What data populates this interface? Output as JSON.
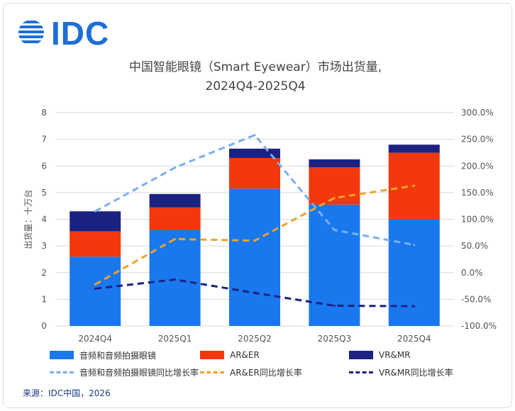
{
  "logo": {
    "text": "IDC"
  },
  "title_line1": "中国智能眼镜（Smart Eyewear）市场出货量,",
  "title_line2": "2024Q4-2025Q4",
  "source": "来源：IDC中国，2026",
  "colors": {
    "audio": "#1978ee",
    "arer": "#f2380c",
    "vrmr": "#1d2180",
    "audio_yoy": "#7aaef0",
    "arer_yoy": "#f0a12c",
    "vrmr_yoy": "#1d2180",
    "grid": "#d9d9d9",
    "axis_text": "#555555"
  },
  "chart_data": {
    "type": "bar",
    "stacked": true,
    "title": "中国智能眼镜（Smart Eyewear）市场出货量, 2024Q4-2025Q4",
    "categories": [
      "2024Q4",
      "2025Q1",
      "2025Q2",
      "2025Q3",
      "2025Q4"
    ],
    "ylabel": "出货量：十万台",
    "ylim": [
      0,
      8
    ],
    "y_ticks": [
      "0",
      "1",
      "2",
      "3",
      "4",
      "5",
      "6",
      "7",
      "8"
    ],
    "y2lim": [
      -100,
      300
    ],
    "y2_ticks": [
      "-100.0%",
      "-50.0%",
      "0.0%",
      "50.0%",
      "100.0%",
      "150.0%",
      "200.0%",
      "250.0%",
      "300.0%"
    ],
    "grid": true,
    "legend_position": "bottom",
    "series": [
      {
        "name": "音频和音频拍摄眼镜",
        "kind": "bar",
        "axis": "left",
        "values": [
          2.6,
          3.6,
          5.15,
          4.55,
          4.0
        ]
      },
      {
        "name": "AR&ER",
        "kind": "bar",
        "axis": "left",
        "values": [
          0.95,
          0.85,
          1.15,
          1.4,
          2.5
        ]
      },
      {
        "name": "VR&MR",
        "kind": "bar",
        "axis": "left",
        "values": [
          0.75,
          0.5,
          0.35,
          0.3,
          0.3
        ]
      },
      {
        "name": "音频和音频拍摄眼镜同比增长率",
        "kind": "line",
        "axis": "right",
        "values": [
          115,
          197,
          258,
          80,
          52
        ]
      },
      {
        "name": "AR&ER同比增长率",
        "kind": "line",
        "axis": "right",
        "values": [
          -22,
          63,
          60,
          140,
          163
        ]
      },
      {
        "name": "VR&MR同比增长率",
        "kind": "line",
        "axis": "right",
        "values": [
          -30,
          -13,
          -38,
          -62,
          -63
        ]
      }
    ]
  }
}
